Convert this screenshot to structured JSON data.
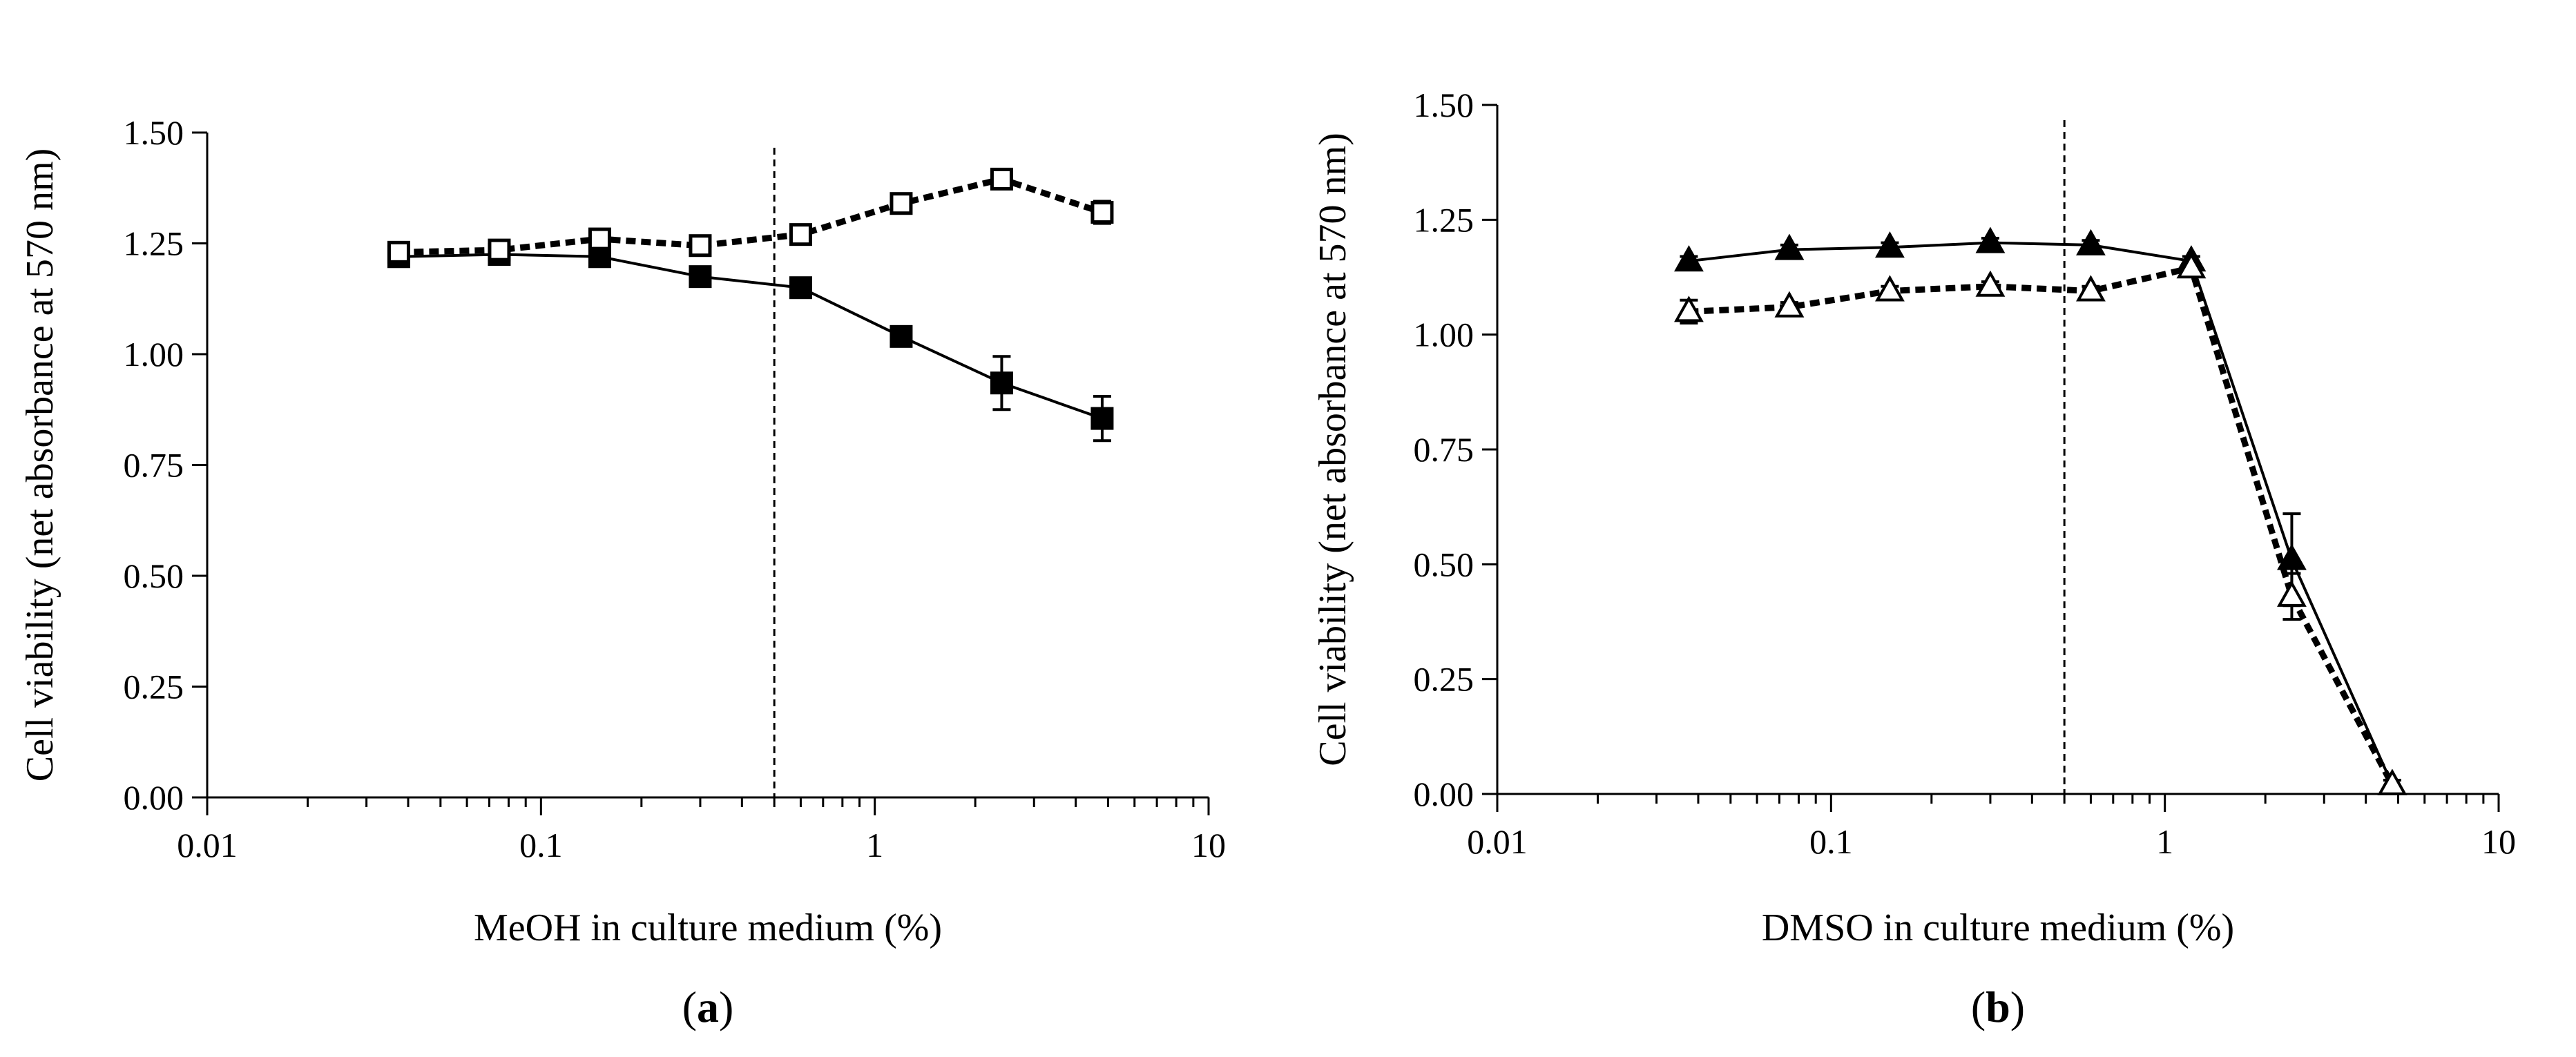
{
  "chart_data": [
    {
      "type": "line",
      "panel_label": "a",
      "xlabel": "MeOH in culture medium (%)",
      "ylabel": "Cell viability (net absorbance at 570 nm)",
      "xscale": "log",
      "xlim": [
        0.01,
        10
      ],
      "ylim": [
        0,
        1.5
      ],
      "x_ticks": [
        0.01,
        0.1,
        1,
        10
      ],
      "x_tick_labels": [
        "0.01",
        "0.1",
        "1",
        "10"
      ],
      "y_ticks": [
        0,
        0.25,
        0.5,
        0.75,
        1.0,
        1.25,
        1.5
      ],
      "y_tick_labels": [
        "0.00",
        "0.25",
        "0.50",
        "0.75",
        "1.00",
        "1.25",
        "1.50"
      ],
      "reference_line_x": 0.5,
      "x": [
        0.0375,
        0.075,
        0.15,
        0.3,
        0.6,
        1.2,
        2.4,
        4.8
      ],
      "series": [
        {
          "name": "filled squares",
          "marker": "square",
          "filled": true,
          "line_style": "solid",
          "values": [
            1.22,
            1.225,
            1.22,
            1.175,
            1.15,
            1.04,
            0.935,
            0.855
          ],
          "errors": [
            0.01,
            0.01,
            0.01,
            0.01,
            0.02,
            0.02,
            0.06,
            0.05
          ]
        },
        {
          "name": "open squares",
          "marker": "square",
          "filled": false,
          "line_style": "dashed",
          "values": [
            1.23,
            1.235,
            1.26,
            1.245,
            1.27,
            1.34,
            1.395,
            1.32
          ],
          "errors": [
            0.01,
            0.01,
            0.01,
            0.01,
            0.01,
            0.015,
            0.015,
            0.025
          ]
        }
      ]
    },
    {
      "type": "line",
      "panel_label": "b",
      "xlabel": "DMSO in culture medium (%)",
      "ylabel": "Cell viability (net absorbance at 570 nm)",
      "xscale": "log",
      "xlim": [
        0.01,
        10
      ],
      "ylim": [
        0,
        1.5
      ],
      "x_ticks": [
        0.01,
        0.1,
        1,
        10
      ],
      "x_tick_labels": [
        "0.01",
        "0.1",
        "1",
        "10"
      ],
      "y_ticks": [
        0,
        0.25,
        0.5,
        0.75,
        1.0,
        1.25,
        1.5
      ],
      "y_tick_labels": [
        "0.00",
        "0.25",
        "0.50",
        "0.75",
        "1.00",
        "1.25",
        "1.50"
      ],
      "reference_line_x": 0.5,
      "x": [
        0.0375,
        0.075,
        0.15,
        0.3,
        0.6,
        1.2,
        2.4,
        4.8
      ],
      "series": [
        {
          "name": "filled triangles",
          "marker": "triangle",
          "filled": true,
          "line_style": "solid",
          "values": [
            1.16,
            1.185,
            1.19,
            1.2,
            1.195,
            1.16,
            0.51,
            0.02
          ],
          "errors": [
            0.01,
            0.01,
            0.01,
            0.01,
            0.01,
            0.01,
            0.1,
            0.01
          ]
        },
        {
          "name": "open triangles",
          "marker": "triangle",
          "filled": false,
          "line_style": "dashed",
          "values": [
            1.05,
            1.06,
            1.095,
            1.105,
            1.095,
            1.145,
            0.43,
            0.02
          ],
          "errors": [
            0.025,
            0.01,
            0.01,
            0.01,
            0.01,
            0.01,
            0.05,
            0.01
          ]
        }
      ]
    }
  ]
}
